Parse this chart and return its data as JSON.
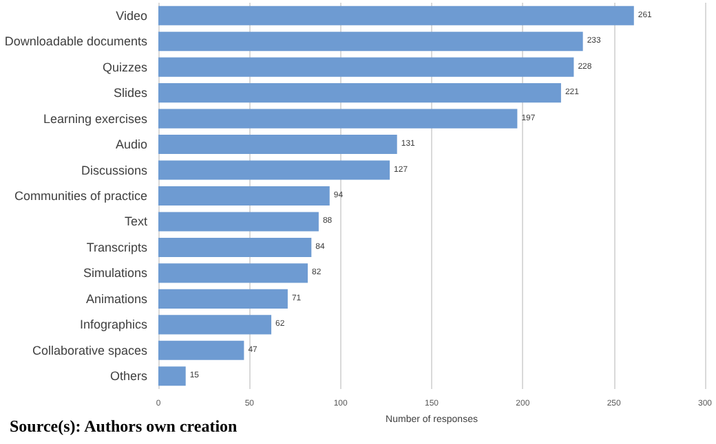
{
  "chart_data": {
    "type": "bar",
    "orientation": "horizontal",
    "xlabel": "Number of responses",
    "categories": [
      "Video",
      "Downloadable documents",
      "Quizzes",
      "Slides",
      "Learning exercises",
      "Audio",
      "Discussions",
      "Communities of practice",
      "Text",
      "Transcripts",
      "Simulations",
      "Animations",
      "Infographics",
      "Collaborative spaces",
      "Others"
    ],
    "values": [
      261,
      233,
      228,
      221,
      197,
      131,
      127,
      94,
      88,
      84,
      82,
      71,
      62,
      47,
      15
    ],
    "color": "#6e9bd2",
    "xlim": [
      0,
      300
    ],
    "xticks": [
      0,
      50,
      100,
      150,
      200,
      250,
      300
    ],
    "grid": "x",
    "data_labels": true,
    "annotations": [
      "Source(s): Authors own creation"
    ]
  }
}
